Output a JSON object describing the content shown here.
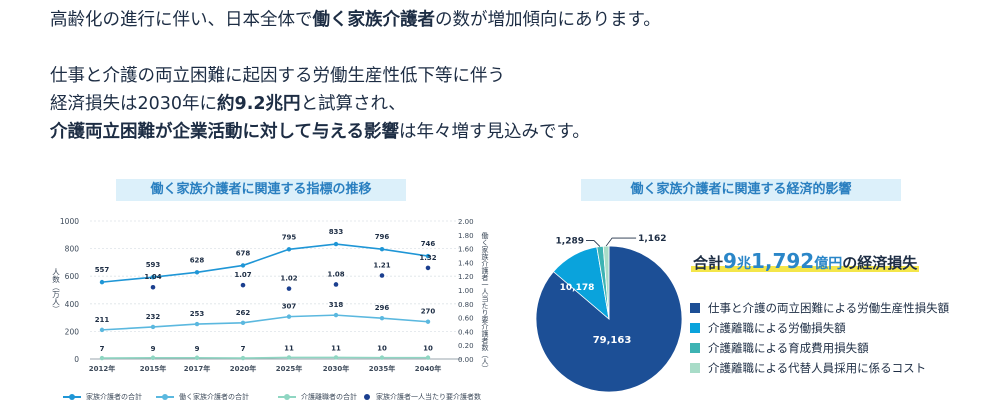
{
  "intro": {
    "line1_pre": "高齢化の進行に伴い、日本全体で",
    "line1_bold": "働く家族介護者",
    "line1_post": "の数が増加傾向にあります。",
    "line2": "仕事と介護の両立困難に起因する労働生産性低下等に伴う",
    "line3_pre": "経済損失は2030年に",
    "line3_bold": "約9.2兆円",
    "line3_post": "と試算され、",
    "line4_bold": "介護両立困難が企業活動に対して与える影響",
    "line4_post": "は年々増す見込みです。"
  },
  "left_heading": "働く家族介護者に関連する指標の推移",
  "right_heading": "働く家族介護者に関連する経済的影響",
  "colors": {
    "line1": "#1f96d6",
    "line2": "#5bb8df",
    "line3": "#8fd6c2",
    "dots": "#1b3f8f",
    "pie": [
      "#1c4f96",
      "#0aa3dc",
      "#3db3b3",
      "#a8dcc8"
    ],
    "heading_bg": "#dcf0fa",
    "heading_text": "#2a7fc0",
    "highlight": "#f4e64a"
  },
  "chart_data": [
    {
      "type": "line",
      "x": [
        "2012年",
        "2015年",
        "2017年",
        "2020年",
        "2025年",
        "2030年",
        "2035年",
        "2040年"
      ],
      "ylim": [
        0,
        1000
      ],
      "yticks": [
        "0",
        "200",
        "400",
        "600",
        "800",
        "1000"
      ],
      "ylabel": "人数（万人）",
      "y2lim": [
        0,
        2
      ],
      "y2ticks": [
        "0.00",
        "0.20",
        "0.40",
        "0.60",
        "0.80",
        "1.00",
        "1.20",
        "1.40",
        "1.60",
        "1.80",
        "2.00"
      ],
      "y2label": "働く家族介護者一人当たり要介護者数（人）",
      "series": [
        {
          "name": "家族介護者の合計",
          "axis": "left",
          "values": [
            557,
            593,
            628,
            678,
            795,
            833,
            796,
            746
          ],
          "labels": [
            "557",
            "593",
            "628",
            "678",
            "795",
            "833",
            "796",
            "746"
          ]
        },
        {
          "name": "働く家族介護者の合計",
          "axis": "left",
          "values": [
            211,
            232,
            253,
            262,
            307,
            318,
            296,
            270
          ],
          "labels": [
            "211",
            "232",
            "253",
            "262",
            "307",
            "318",
            "296",
            "270"
          ]
        },
        {
          "name": "介護離職者の合計",
          "axis": "left",
          "values": [
            7,
            9,
            9,
            7,
            11,
            11,
            10,
            10
          ],
          "labels": [
            "7",
            "9",
            "9",
            "7",
            "11",
            "11",
            "10",
            "10"
          ]
        },
        {
          "name": "家族介護者一人当たり要介護者数",
          "axis": "right",
          "values": [
            null,
            1.04,
            null,
            1.07,
            1.02,
            1.08,
            1.21,
            1.32
          ],
          "labels": [
            null,
            "1.04",
            null,
            "1.07",
            "1.02",
            "1.08",
            "1.21",
            "1.32"
          ]
        }
      ]
    },
    {
      "type": "pie",
      "total_label": {
        "prefix": "合計",
        "n1": "9",
        "u1": "兆",
        "n2": "1,792",
        "u2": "億円",
        "suffix": "の経済損失"
      },
      "slices": [
        {
          "label": "仕事と介護の両立困難による労働生産性損失額",
          "value": 79163,
          "value_label": "79,163"
        },
        {
          "label": "介護離職による労働損失額",
          "value": 10178,
          "value_label": "10,178"
        },
        {
          "label": "介護離職による育成費用損失額",
          "value": 1289,
          "value_label": "1,289"
        },
        {
          "label": "介護離職による代替人員採用に係るコスト",
          "value": 1162,
          "value_label": "1,162"
        }
      ]
    }
  ]
}
